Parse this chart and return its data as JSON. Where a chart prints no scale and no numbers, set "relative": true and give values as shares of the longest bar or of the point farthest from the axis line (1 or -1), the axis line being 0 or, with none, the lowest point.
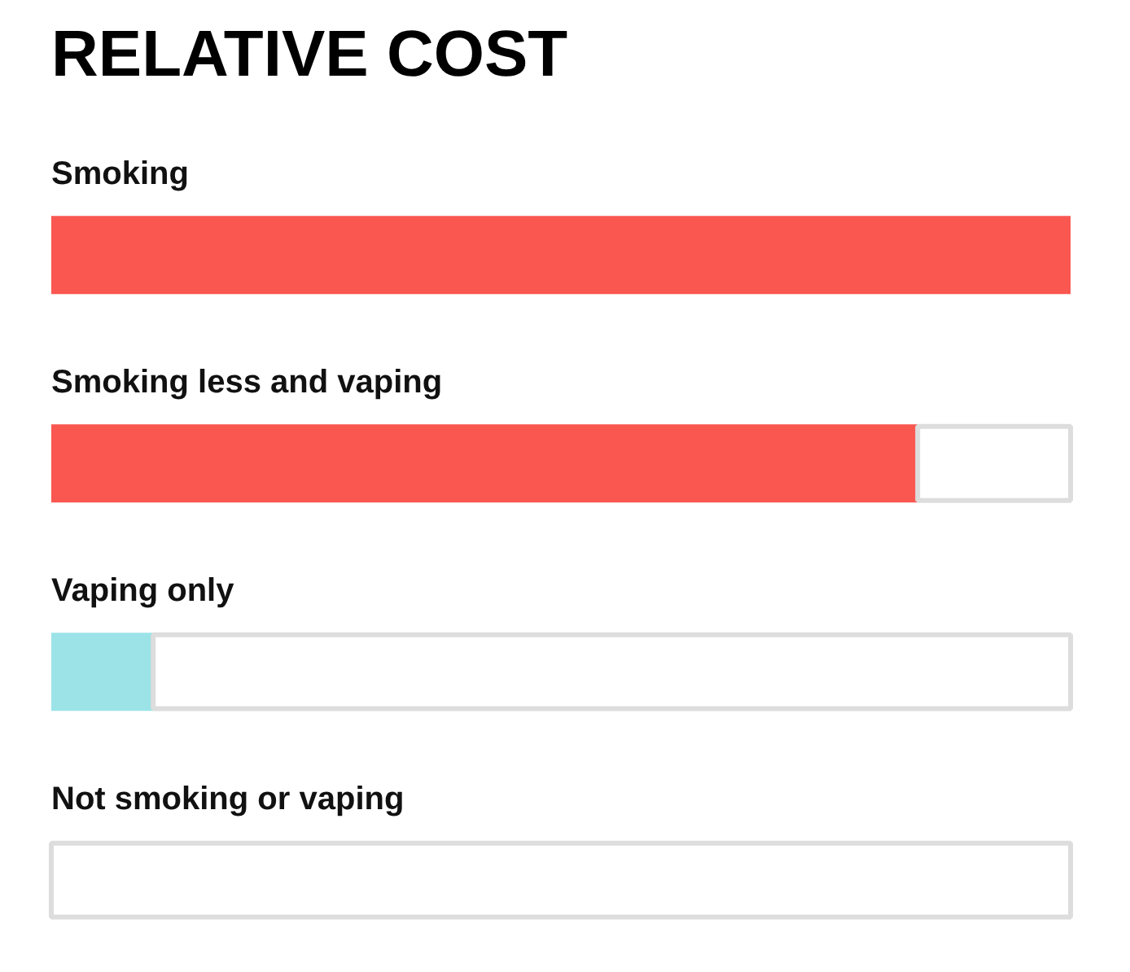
{
  "chart_data": {
    "type": "bar",
    "orientation": "horizontal",
    "relative": true,
    "stacked": true,
    "title": "RELATIVE COST",
    "categories": [
      "Smoking",
      "Smoking less and vaping",
      "Vaping only",
      "Not smoking or vaping"
    ],
    "series": [
      {
        "colors": [
          "#f95750",
          "#f95750",
          "#9ce3e8",
          "#9ce3e8"
        ],
        "values": [
          1,
          0.85,
          0.1,
          0
        ]
      },
      {
        "color": "#ffffff",
        "values": [
          0,
          0.15,
          0.9,
          1
        ]
      }
    ]
  }
}
